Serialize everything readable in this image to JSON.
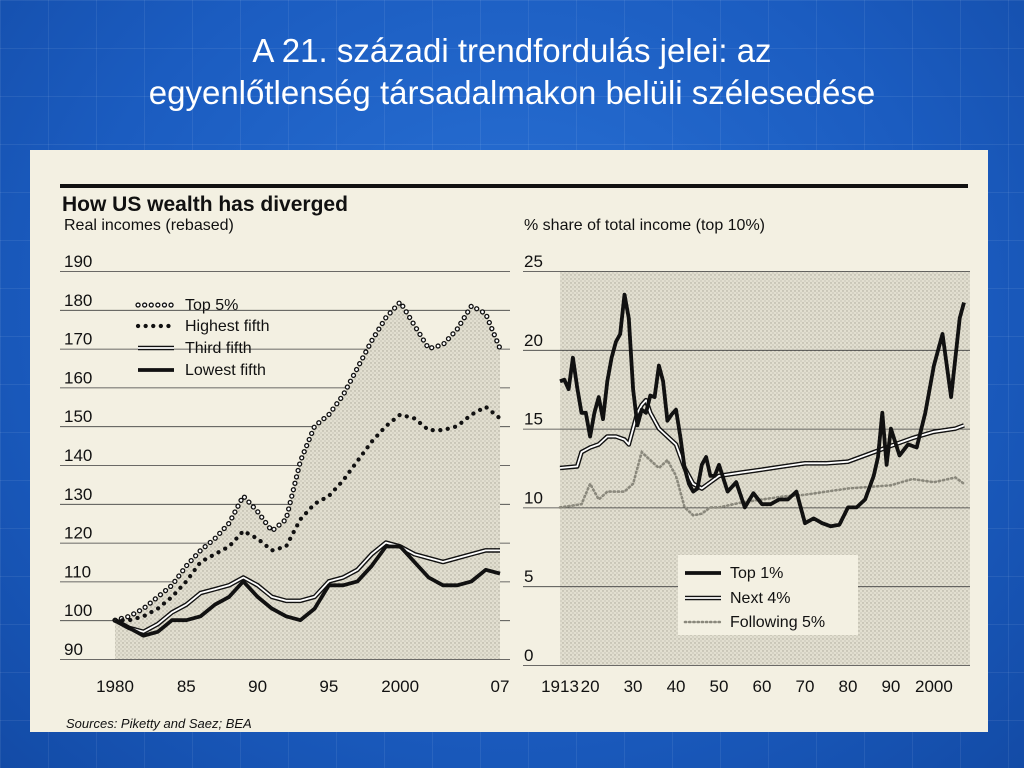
{
  "slide": {
    "title_line1": "A 21. századi trendfordulás jelei: az",
    "title_line2": "egyenlőtlenség társadalmakon belüli szélesedése"
  },
  "figure": {
    "headline": "How US wealth has diverged",
    "source": "Sources: Piketty and Saez; BEA"
  },
  "colors": {
    "slide_background": "#1a5cbf",
    "chart_background": "#f3f0e2",
    "shading": "#d8d5c6",
    "ink": "#111111"
  },
  "chart_data": [
    {
      "type": "line",
      "title": "Real incomes (rebased)",
      "xlim": [
        1980,
        2007
      ],
      "ylim": [
        90,
        190
      ],
      "x_tick_labels": [
        "1980",
        "85",
        "90",
        "95",
        "2000",
        "07"
      ],
      "x_tick_values": [
        1980,
        1985,
        1990,
        1995,
        2000,
        2007
      ],
      "y_ticks": [
        90,
        100,
        110,
        120,
        130,
        140,
        150,
        160,
        170,
        180,
        190
      ],
      "grid": true,
      "legend_position": "top-left",
      "shaded_series": "Top 5%",
      "series": [
        {
          "name": "Top 5%",
          "style": "open-circles",
          "x": [
            1980,
            1981,
            1982,
            1983,
            1984,
            1985,
            1986,
            1987,
            1988,
            1989,
            1990,
            1991,
            1992,
            1993,
            1994,
            1995,
            1996,
            1997,
            1998,
            1999,
            2000,
            2001,
            2002,
            2003,
            2004,
            2005,
            2006,
            2007
          ],
          "y": [
            100,
            101,
            103,
            106,
            109,
            114,
            118,
            121,
            125,
            132,
            128,
            123,
            126,
            141,
            150,
            153,
            158,
            165,
            172,
            178,
            182,
            176,
            170,
            171,
            175,
            181,
            179,
            170
          ]
        },
        {
          "name": "Highest fifth",
          "style": "dots",
          "x": [
            1980,
            1981,
            1982,
            1983,
            1984,
            1985,
            1986,
            1987,
            1988,
            1989,
            1990,
            1991,
            1992,
            1993,
            1994,
            1995,
            1996,
            1997,
            1998,
            1999,
            2000,
            2001,
            2002,
            2003,
            2004,
            2005,
            2006,
            2007
          ],
          "y": [
            100,
            100,
            101,
            103,
            106,
            110,
            115,
            117,
            119,
            123,
            121,
            118,
            119,
            126,
            130,
            132,
            136,
            141,
            146,
            150,
            153,
            152,
            149,
            149,
            150,
            153,
            155,
            152
          ]
        },
        {
          "name": "Third fifth",
          "style": "double-line",
          "x": [
            1980,
            1981,
            1982,
            1983,
            1984,
            1985,
            1986,
            1987,
            1988,
            1989,
            1990,
            1991,
            1992,
            1993,
            1994,
            1995,
            1996,
            1997,
            1998,
            1999,
            2000,
            2001,
            2002,
            2003,
            2004,
            2005,
            2006,
            2007
          ],
          "y": [
            100,
            98,
            97,
            99,
            102,
            104,
            107,
            108,
            109,
            111,
            109,
            106,
            105,
            105,
            106,
            110,
            111,
            113,
            117,
            120,
            119,
            117,
            116,
            115,
            116,
            117,
            118,
            118
          ]
        },
        {
          "name": "Lowest fifth",
          "style": "thick-line",
          "x": [
            1980,
            1981,
            1982,
            1983,
            1984,
            1985,
            1986,
            1987,
            1988,
            1989,
            1990,
            1991,
            1992,
            1993,
            1994,
            1995,
            1996,
            1997,
            1998,
            1999,
            2000,
            2001,
            2002,
            2003,
            2004,
            2005,
            2006,
            2007
          ],
          "y": [
            100,
            98,
            96,
            97,
            100,
            100,
            101,
            104,
            106,
            110,
            106,
            103,
            101,
            100,
            103,
            109,
            109,
            110,
            114,
            119,
            119,
            115,
            111,
            109,
            109,
            110,
            113,
            112
          ]
        }
      ]
    },
    {
      "type": "line",
      "title": "% share of total income (top 10%)",
      "xlim": [
        1913,
        2007
      ],
      "ylim": [
        0,
        25
      ],
      "x_tick_labels": [
        "1913",
        "20",
        "30",
        "40",
        "50",
        "60",
        "70",
        "80",
        "90",
        "2000"
      ],
      "x_tick_values": [
        1913,
        1920,
        1930,
        1940,
        1950,
        1960,
        1970,
        1980,
        1990,
        2000
      ],
      "y_ticks": [
        0,
        5,
        10,
        15,
        20,
        25
      ],
      "grid": true,
      "legend_position": "bottom-center",
      "series": [
        {
          "name": "Top 1%",
          "style": "thick-line",
          "x": [
            1913,
            1914,
            1915,
            1916,
            1917,
            1918,
            1919,
            1920,
            1921,
            1922,
            1923,
            1924,
            1925,
            1926,
            1927,
            1928,
            1929,
            1930,
            1931,
            1932,
            1933,
            1934,
            1935,
            1936,
            1937,
            1938,
            1939,
            1940,
            1941,
            1942,
            1943,
            1944,
            1945,
            1946,
            1947,
            1948,
            1949,
            1950,
            1952,
            1954,
            1956,
            1958,
            1960,
            1962,
            1964,
            1966,
            1968,
            1970,
            1972,
            1974,
            1976,
            1978,
            1980,
            1982,
            1984,
            1986,
            1987,
            1988,
            1989,
            1990,
            1992,
            1994,
            1996,
            1998,
            2000,
            2002,
            2004,
            2006,
            2007
          ],
          "y": [
            18,
            18.1,
            17.5,
            19.5,
            17.6,
            16,
            16,
            14.5,
            16,
            17,
            15.6,
            18,
            19.5,
            20.5,
            21,
            23.5,
            22,
            17.5,
            15.2,
            16.2,
            16,
            17.1,
            17,
            19,
            18,
            15.5,
            15.9,
            16.2,
            14.5,
            12.5,
            11.5,
            11,
            11.2,
            12.7,
            13.2,
            12,
            12,
            12.7,
            11,
            11.6,
            10,
            10.9,
            10.2,
            10.2,
            10.5,
            10.5,
            11,
            9,
            9.3,
            9,
            8.8,
            8.9,
            10,
            10,
            10.5,
            12,
            13.2,
            16,
            12.7,
            15,
            13.3,
            14,
            13.8,
            16,
            19,
            21,
            17,
            22,
            23
          ]
        },
        {
          "name": "Next 4%",
          "style": "double-line",
          "x": [
            1913,
            1917,
            1918,
            1920,
            1922,
            1924,
            1926,
            1928,
            1929,
            1930,
            1931,
            1932,
            1933,
            1934,
            1936,
            1938,
            1940,
            1942,
            1944,
            1946,
            1948,
            1950,
            1955,
            1960,
            1965,
            1970,
            1975,
            1980,
            1985,
            1990,
            1995,
            2000,
            2005,
            2007
          ],
          "y": [
            12.5,
            12.6,
            13.5,
            13.8,
            14,
            14.5,
            14.5,
            14.3,
            14,
            15,
            16,
            16.5,
            16.8,
            16,
            15,
            14.5,
            14,
            12.5,
            11.5,
            11.2,
            11.6,
            12,
            12.2,
            12.4,
            12.6,
            12.8,
            12.8,
            12.9,
            13.4,
            13.9,
            14.4,
            14.8,
            15,
            15.2
          ]
        },
        {
          "name": "Following 5%",
          "style": "dotted",
          "x": [
            1913,
            1918,
            1920,
            1922,
            1924,
            1926,
            1928,
            1930,
            1932,
            1934,
            1936,
            1938,
            1940,
            1942,
            1944,
            1946,
            1948,
            1950,
            1955,
            1960,
            1965,
            1970,
            1975,
            1980,
            1985,
            1990,
            1995,
            2000,
            2005,
            2007
          ],
          "y": [
            10,
            10.2,
            11.5,
            10.5,
            11,
            11,
            11,
            11.5,
            13.5,
            13,
            12.5,
            13,
            12,
            10,
            9.5,
            9.6,
            10,
            10,
            10.3,
            10.5,
            10.7,
            10.8,
            11,
            11.2,
            11.3,
            11.4,
            11.8,
            11.6,
            11.9,
            11.5
          ]
        }
      ]
    }
  ]
}
